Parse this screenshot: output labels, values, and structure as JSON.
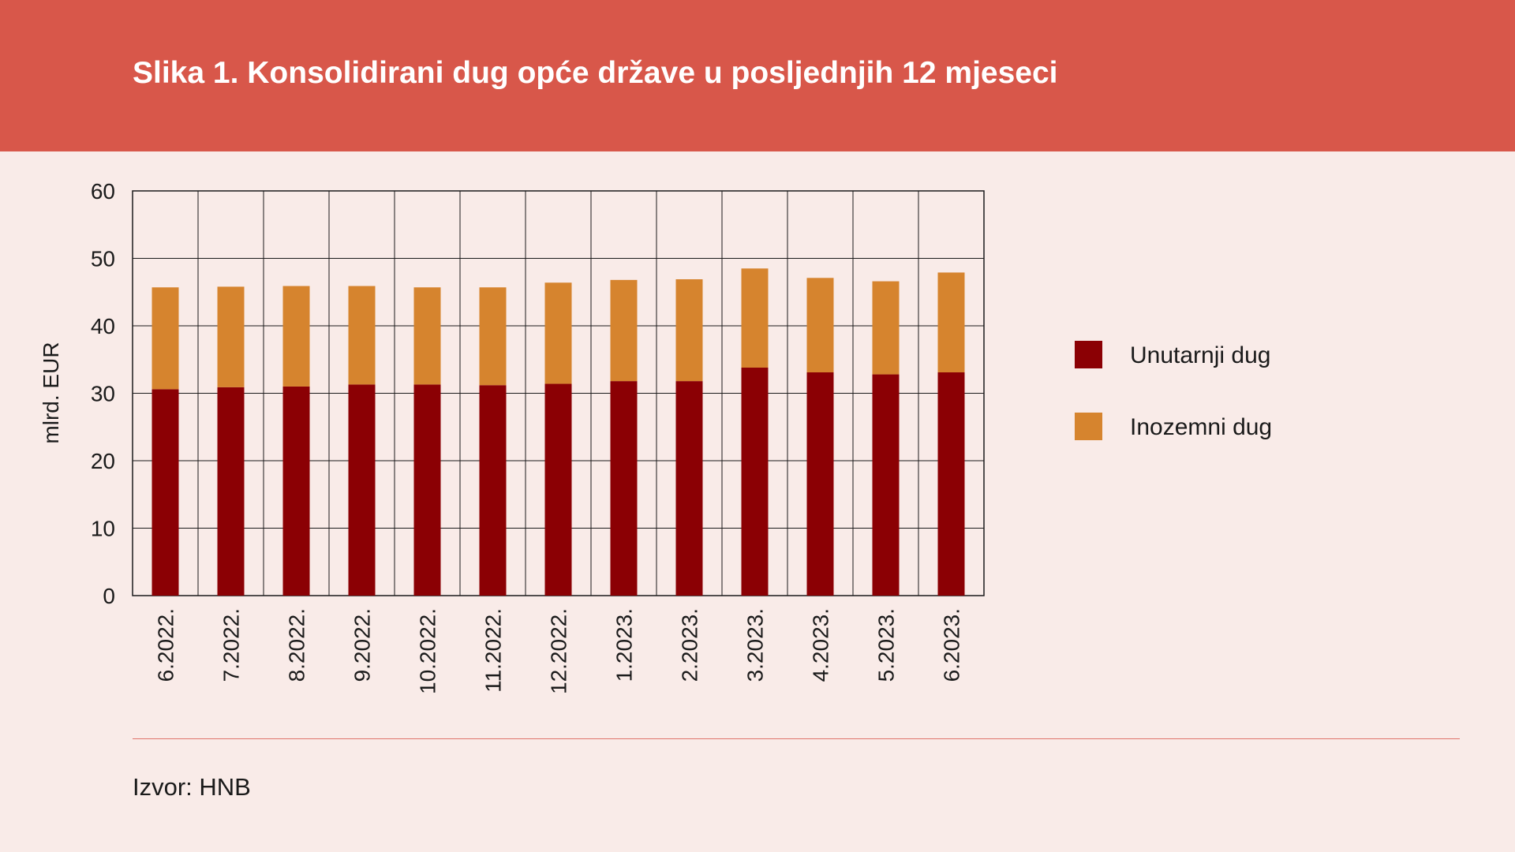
{
  "header": {
    "title": "Slika 1. Konsolidirani dug opće države u posljednjih 12 mjeseci"
  },
  "footer": {
    "source": "Izvor: HNB"
  },
  "colors": {
    "header_bg": "#d8574a",
    "page_bg": "#f9ebe8",
    "domestic": "#8b0004",
    "foreign": "#d6842e"
  },
  "chart_data": {
    "type": "bar",
    "stacked": true,
    "categories": [
      "6.2022.",
      "7.2022.",
      "8.2022.",
      "9.2022.",
      "10.2022.",
      "11.2022.",
      "12.2022.",
      "1.2023.",
      "2.2023.",
      "3.2023.",
      "4.2023.",
      "5.2023.",
      "6.2023."
    ],
    "series": [
      {
        "name": "Unutarnji dug",
        "color": "#8b0004",
        "values": [
          30.6,
          30.9,
          31.0,
          31.3,
          31.3,
          31.2,
          31.4,
          31.8,
          31.8,
          33.8,
          33.1,
          32.8,
          33.1
        ]
      },
      {
        "name": "Inozemni dug",
        "color": "#d6842e",
        "values": [
          15.1,
          14.9,
          14.9,
          14.6,
          14.4,
          14.5,
          15.0,
          15.0,
          15.1,
          14.7,
          14.0,
          13.8,
          14.8
        ]
      }
    ],
    "ylabel": "mlrd. EUR",
    "xlabel": "",
    "ylim": [
      0,
      60
    ],
    "yticks": [
      0,
      10,
      20,
      30,
      40,
      50,
      60
    ],
    "grid": true,
    "legend": "right"
  }
}
